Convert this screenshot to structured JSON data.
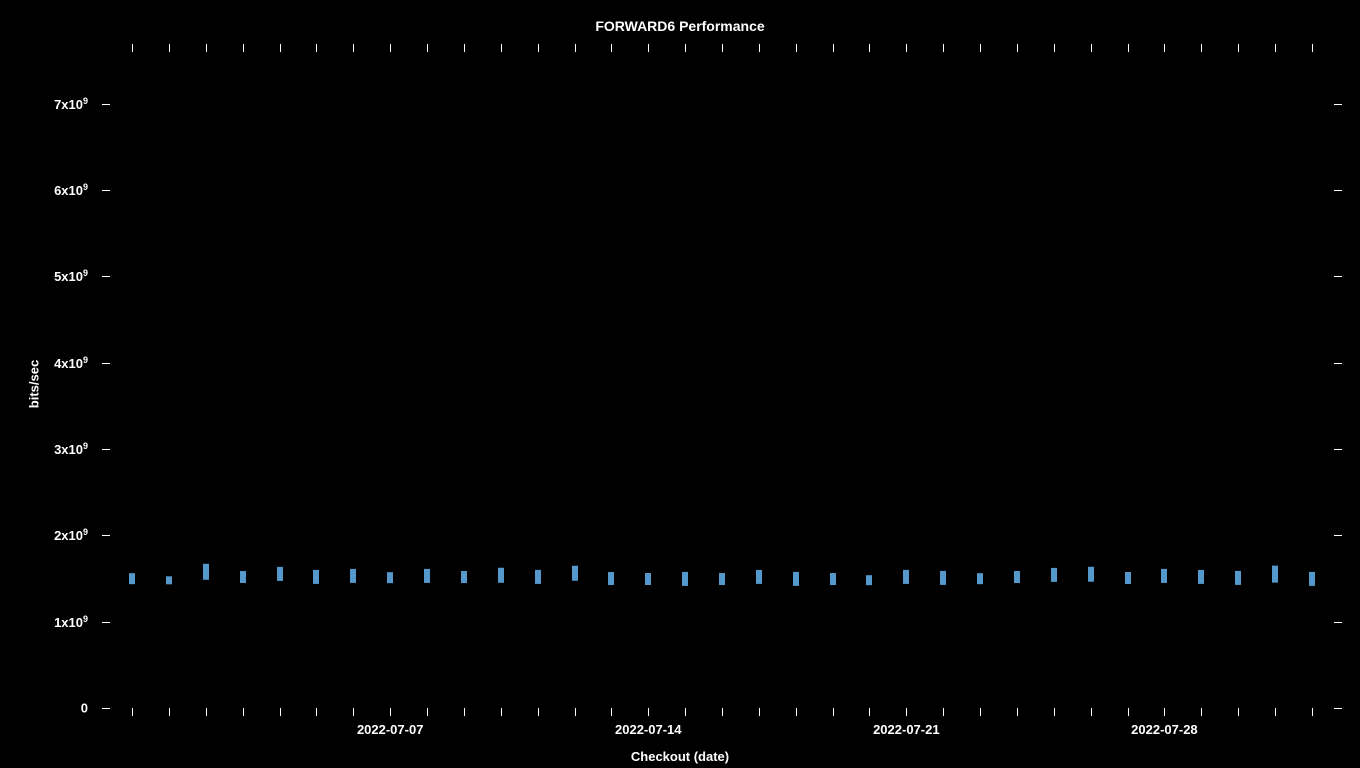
{
  "chart": {
    "type": "scatter-errorbar",
    "title": "FORWARD6 Performance",
    "title_fontsize": 14,
    "background_color": "#000000",
    "text_color": "#ffffff",
    "marker_color": "#5599cc",
    "marker_width": 6,
    "y_axis": {
      "label": "bits/sec",
      "min": 0,
      "max": 7600000000.0,
      "ticks": [
        {
          "value": 0,
          "label_html": "0"
        },
        {
          "value": 1000000000.0,
          "label_html": "1x10<sup>9</sup>"
        },
        {
          "value": 2000000000.0,
          "label_html": "2x10<sup>9</sup>"
        },
        {
          "value": 3000000000.0,
          "label_html": "3x10<sup>9</sup>"
        },
        {
          "value": 4000000000.0,
          "label_html": "4x10<sup>9</sup>"
        },
        {
          "value": 5000000000.0,
          "label_html": "5x10<sup>9</sup>"
        },
        {
          "value": 6000000000.0,
          "label_html": "6x10<sup>9</sup>"
        },
        {
          "value": 7000000000.0,
          "label_html": "7x10<sup>9</sup>"
        }
      ]
    },
    "x_axis": {
      "label": "Checkout (date)",
      "min": 0,
      "max": 32,
      "minor_ticks": [
        0,
        1,
        2,
        3,
        4,
        5,
        6,
        7,
        8,
        9,
        10,
        11,
        12,
        13,
        14,
        15,
        16,
        17,
        18,
        19,
        20,
        21,
        22,
        23,
        24,
        25,
        26,
        27,
        28,
        29,
        30,
        31,
        32
      ],
      "major_ticks": [
        {
          "value": 7,
          "label": "2022-07-07"
        },
        {
          "value": 14,
          "label": "2022-07-14"
        },
        {
          "value": 21,
          "label": "2022-07-21"
        },
        {
          "value": 28,
          "label": "2022-07-28"
        }
      ]
    },
    "data": [
      {
        "x": 0,
        "y": 1500000000.0,
        "err": 60000000.0
      },
      {
        "x": 1,
        "y": 1480000000.0,
        "err": 50000000.0
      },
      {
        "x": 2,
        "y": 1580000000.0,
        "err": 90000000.0
      },
      {
        "x": 3,
        "y": 1520000000.0,
        "err": 70000000.0
      },
      {
        "x": 4,
        "y": 1550000000.0,
        "err": 80000000.0
      },
      {
        "x": 5,
        "y": 1520000000.0,
        "err": 80000000.0
      },
      {
        "x": 6,
        "y": 1530000000.0,
        "err": 80000000.0
      },
      {
        "x": 7,
        "y": 1510000000.0,
        "err": 60000000.0
      },
      {
        "x": 8,
        "y": 1530000000.0,
        "err": 80000000.0
      },
      {
        "x": 9,
        "y": 1520000000.0,
        "err": 70000000.0
      },
      {
        "x": 10,
        "y": 1540000000.0,
        "err": 90000000.0
      },
      {
        "x": 11,
        "y": 1520000000.0,
        "err": 80000000.0
      },
      {
        "x": 12,
        "y": 1560000000.0,
        "err": 90000000.0
      },
      {
        "x": 13,
        "y": 1500000000.0,
        "err": 70000000.0
      },
      {
        "x": 14,
        "y": 1490000000.0,
        "err": 70000000.0
      },
      {
        "x": 15,
        "y": 1500000000.0,
        "err": 80000000.0
      },
      {
        "x": 16,
        "y": 1490000000.0,
        "err": 70000000.0
      },
      {
        "x": 17,
        "y": 1520000000.0,
        "err": 80000000.0
      },
      {
        "x": 18,
        "y": 1500000000.0,
        "err": 80000000.0
      },
      {
        "x": 19,
        "y": 1490000000.0,
        "err": 70000000.0
      },
      {
        "x": 20,
        "y": 1480000000.0,
        "err": 60000000.0
      },
      {
        "x": 21,
        "y": 1520000000.0,
        "err": 80000000.0
      },
      {
        "x": 22,
        "y": 1510000000.0,
        "err": 80000000.0
      },
      {
        "x": 23,
        "y": 1500000000.0,
        "err": 60000000.0
      },
      {
        "x": 24,
        "y": 1520000000.0,
        "err": 70000000.0
      },
      {
        "x": 25,
        "y": 1540000000.0,
        "err": 80000000.0
      },
      {
        "x": 26,
        "y": 1550000000.0,
        "err": 90000000.0
      },
      {
        "x": 27,
        "y": 1510000000.0,
        "err": 70000000.0
      },
      {
        "x": 28,
        "y": 1530000000.0,
        "err": 80000000.0
      },
      {
        "x": 29,
        "y": 1520000000.0,
        "err": 80000000.0
      },
      {
        "x": 30,
        "y": 1510000000.0,
        "err": 80000000.0
      },
      {
        "x": 31,
        "y": 1550000000.0,
        "err": 100000000.0
      },
      {
        "x": 32,
        "y": 1500000000.0,
        "err": 80000000.0
      }
    ]
  }
}
